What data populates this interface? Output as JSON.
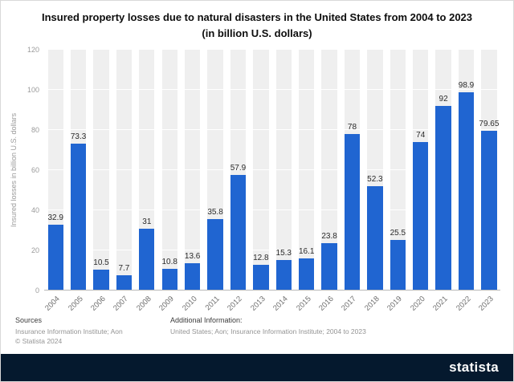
{
  "title": "Insured property losses due to natural disasters in the United States from 2004 to 2023 (in billion U.S. dollars)",
  "chart_data": {
    "type": "bar",
    "categories": [
      "2004",
      "2005",
      "2006",
      "2007",
      "2008",
      "2009",
      "2010",
      "2011",
      "2012",
      "2013",
      "2014",
      "2015",
      "2016",
      "2017",
      "2018",
      "2019",
      "2020",
      "2021",
      "2022",
      "2023"
    ],
    "values": [
      32.9,
      73.3,
      10.5,
      7.7,
      31,
      10.8,
      13.6,
      35.8,
      57.9,
      12.8,
      15.3,
      16.1,
      23.8,
      78,
      52.3,
      25.5,
      74,
      92,
      98.9,
      79.65
    ],
    "title": "Insured property losses due to natural disasters in the United States from 2004 to 2023 (in billion U.S. dollars)",
    "xlabel": "",
    "ylabel": "Insured losses in billion U.S. dollars",
    "ylim": [
      0,
      120
    ],
    "yticks": [
      0,
      20,
      40,
      60,
      80,
      100,
      120
    ],
    "grid": true,
    "legend": "none",
    "bar_color": "#2065d1",
    "band_color": "#efefef"
  },
  "footer": {
    "sources_heading": "Sources",
    "sources_text": "Insurance Information Institute; Aon",
    "copyright": "© Statista 2024",
    "additional_heading": "Additional Information:",
    "additional_text": "United States; Aon; Insurance Information Institute; 2004 to 2023"
  },
  "branding": {
    "logo_text": "statista",
    "bar_color": "#05192e"
  }
}
